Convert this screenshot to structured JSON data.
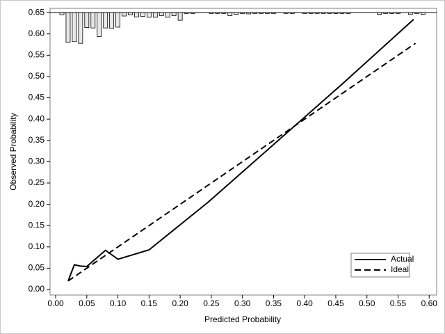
{
  "chart_data": {
    "type": "line",
    "x_label": "Predicted Probability",
    "y_label": "Observed Probability",
    "xlim": [
      -0.009,
      0.612
    ],
    "ylim": [
      -0.013,
      0.66
    ],
    "xticks": [
      {
        "value": 0,
        "label": "0.00"
      },
      {
        "value": 0.05,
        "label": "0.05"
      },
      {
        "value": 0.1,
        "label": "0.10"
      },
      {
        "value": 0.15,
        "label": "0.15"
      },
      {
        "value": 0.2,
        "label": "0.20"
      },
      {
        "value": 0.25,
        "label": "0.25"
      },
      {
        "value": 0.3,
        "label": "0.30"
      },
      {
        "value": 0.35,
        "label": "0.35"
      },
      {
        "value": 0.4,
        "label": "0.40"
      },
      {
        "value": 0.45,
        "label": "0.45"
      },
      {
        "value": 0.5,
        "label": "0.50"
      },
      {
        "value": 0.55,
        "label": "0.55"
      },
      {
        "value": 0.6,
        "label": "0.60"
      }
    ],
    "yticks": [
      {
        "value": 0,
        "label": "0.00"
      },
      {
        "value": 0.05,
        "label": "0.05"
      },
      {
        "value": 0.1,
        "label": "0.10"
      },
      {
        "value": 0.15,
        "label": "0.15"
      },
      {
        "value": 0.2,
        "label": "0.20"
      },
      {
        "value": 0.25,
        "label": "0.25"
      },
      {
        "value": 0.3,
        "label": "0.30"
      },
      {
        "value": 0.35,
        "label": "0.35"
      },
      {
        "value": 0.4,
        "label": "0.40"
      },
      {
        "value": 0.45,
        "label": "0.45"
      },
      {
        "value": 0.5,
        "label": "0.50"
      },
      {
        "value": 0.55,
        "label": "0.55"
      },
      {
        "value": 0.6,
        "label": "0.60"
      },
      {
        "value": 0.65,
        "label": "0.65"
      }
    ],
    "legend": "lower right",
    "series": [
      {
        "name": "Actual",
        "color": "#000000",
        "dash": "solid",
        "x": [
          0.02,
          0.03,
          0.04,
          0.05,
          0.08,
          0.1,
          0.15,
          0.245,
          0.46,
          0.575
        ],
        "values": [
          0.02,
          0.058,
          0.055,
          0.054,
          0.092,
          0.071,
          0.093,
          0.205,
          0.482,
          0.634
        ]
      },
      {
        "name": "Ideal",
        "color": "#000000",
        "dash": "dashed",
        "x": [
          0.02,
          0.578
        ],
        "values": [
          0.02,
          0.578
        ]
      }
    ],
    "histogram": {
      "base": 0.65,
      "color": "#e8e8e8",
      "x": [
        0.01,
        0.02,
        0.03,
        0.04,
        0.05,
        0.06,
        0.07,
        0.08,
        0.09,
        0.1,
        0.11,
        0.12,
        0.13,
        0.14,
        0.15,
        0.16,
        0.17,
        0.18,
        0.19,
        0.2,
        0.21,
        0.22,
        0.25,
        0.26,
        0.27,
        0.28,
        0.29,
        0.3,
        0.31,
        0.32,
        0.33,
        0.34,
        0.35,
        0.37,
        0.38,
        0.4,
        0.41,
        0.42,
        0.43,
        0.44,
        0.45,
        0.46,
        0.47,
        0.52,
        0.53,
        0.54,
        0.55,
        0.57,
        0.58,
        0.59
      ],
      "bottom": [
        0.645,
        0.58,
        0.582,
        0.578,
        0.615,
        0.614,
        0.594,
        0.614,
        0.613,
        0.616,
        0.642,
        0.645,
        0.64,
        0.641,
        0.639,
        0.639,
        0.643,
        0.639,
        0.643,
        0.632,
        0.648,
        0.648,
        0.648,
        0.648,
        0.648,
        0.643,
        0.646,
        0.648,
        0.647,
        0.648,
        0.648,
        0.648,
        0.648,
        0.648,
        0.648,
        0.648,
        0.648,
        0.648,
        0.648,
        0.648,
        0.648,
        0.648,
        0.648,
        0.646,
        0.648,
        0.648,
        0.648,
        0.646,
        0.648,
        0.646
      ]
    }
  }
}
